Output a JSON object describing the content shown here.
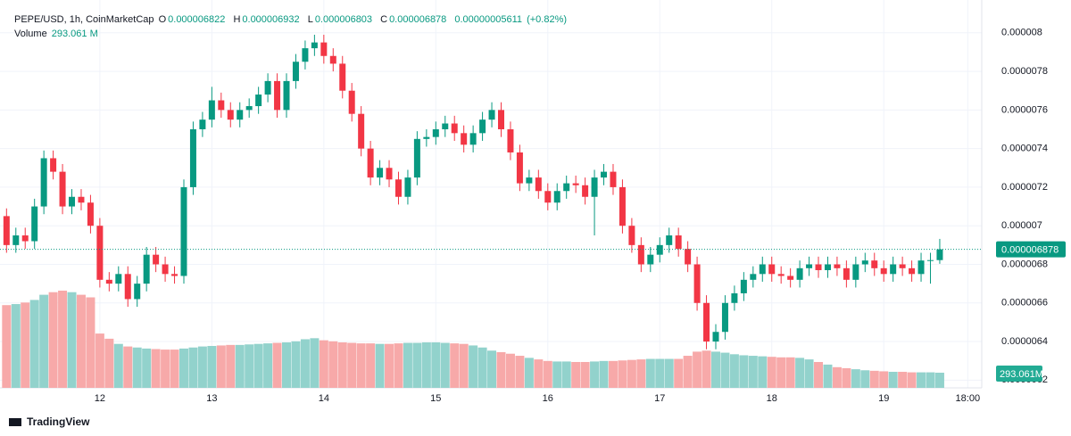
{
  "chart_data": {
    "type": "candlestick",
    "title": "PEPE/USD, 1h, CoinMarketCap",
    "ohlc_letters": [
      "O",
      "H",
      "L",
      "C"
    ],
    "change_label": "0.00000005611",
    "change_pct_label": "(+0.82%)",
    "volume_title": "Volume",
    "volume_header_label": "293.061 M",
    "volume_axis_label": "293.061M",
    "footer": "TradingView",
    "x": [
      0,
      2,
      4,
      6,
      8,
      10,
      12,
      14,
      16,
      18,
      20,
      22,
      24,
      26,
      28,
      30,
      32,
      34,
      36,
      38,
      40,
      42,
      44,
      46,
      48,
      50,
      52,
      54,
      56,
      58,
      60,
      62,
      64,
      66,
      68,
      70,
      72,
      74,
      76,
      78,
      80,
      82,
      84,
      86,
      88,
      90,
      92,
      94,
      96,
      98,
      100,
      102,
      104,
      106,
      108,
      110,
      112,
      114,
      116,
      118,
      120,
      122,
      124,
      126,
      128,
      130,
      132,
      134,
      136,
      138,
      140,
      142,
      144,
      146,
      148,
      150,
      152,
      154,
      156,
      158,
      160,
      162,
      164,
      166,
      168,
      170,
      172,
      174,
      176,
      178,
      180,
      182,
      184,
      186,
      188,
      190,
      192,
      194,
      196,
      198,
      200
    ],
    "candles": [
      [
        7.05e-06,
        7.09e-06,
        6.86e-06,
        6.9e-06
      ],
      [
        6.9e-06,
        6.99e-06,
        6.86e-06,
        6.95e-06
      ],
      [
        6.95e-06,
        6.99e-06,
        6.88e-06,
        6.92e-06
      ],
      [
        6.92e-06,
        7.14e-06,
        6.88e-06,
        7.1e-06
      ],
      [
        7.1e-06,
        7.39e-06,
        7.06e-06,
        7.35e-06
      ],
      [
        7.35e-06,
        7.39e-06,
        7.24e-06,
        7.28e-06
      ],
      [
        7.28e-06,
        7.32e-06,
        7.06e-06,
        7.1e-06
      ],
      [
        7.1e-06,
        7.19e-06,
        7.06e-06,
        7.15e-06
      ],
      [
        7.15e-06,
        7.19e-06,
        7.08e-06,
        7.12e-06
      ],
      [
        7.12e-06,
        7.16e-06,
        6.96e-06,
        7e-06
      ],
      [
        7e-06,
        7.04e-06,
        6.68e-06,
        6.72e-06
      ],
      [
        6.72e-06,
        6.76e-06,
        6.66e-06,
        6.7e-06
      ],
      [
        6.7e-06,
        6.79e-06,
        6.66e-06,
        6.75e-06
      ],
      [
        6.75e-06,
        6.79e-06,
        6.58e-06,
        6.62e-06
      ],
      [
        6.62e-06,
        6.74e-06,
        6.58e-06,
        6.7e-06
      ],
      [
        6.7e-06,
        6.89e-06,
        6.66e-06,
        6.85e-06
      ],
      [
        6.85e-06,
        6.89e-06,
        6.76e-06,
        6.8e-06
      ],
      [
        6.8e-06,
        6.84e-06,
        6.71e-06,
        6.75e-06
      ],
      [
        6.75e-06,
        6.79e-06,
        6.7e-06,
        6.74e-06
      ],
      [
        6.74e-06,
        7.24e-06,
        6.7e-06,
        7.2e-06
      ],
      [
        7.2e-06,
        7.54e-06,
        7.16e-06,
        7.5e-06
      ],
      [
        7.5e-06,
        7.59e-06,
        7.46e-06,
        7.55e-06
      ],
      [
        7.55e-06,
        7.72e-06,
        7.51e-06,
        7.65e-06
      ],
      [
        7.65e-06,
        7.69e-06,
        7.56e-06,
        7.6e-06
      ],
      [
        7.6e-06,
        7.64e-06,
        7.51e-06,
        7.55e-06
      ],
      [
        7.55e-06,
        7.64e-06,
        7.51e-06,
        7.6e-06
      ],
      [
        7.6e-06,
        7.66e-06,
        7.56e-06,
        7.62e-06
      ],
      [
        7.62e-06,
        7.72e-06,
        7.58e-06,
        7.68e-06
      ],
      [
        7.68e-06,
        7.79e-06,
        7.64e-06,
        7.75e-06
      ],
      [
        7.75e-06,
        7.79e-06,
        7.56e-06,
        7.6e-06
      ],
      [
        7.6e-06,
        7.79e-06,
        7.56e-06,
        7.75e-06
      ],
      [
        7.75e-06,
        7.89e-06,
        7.71e-06,
        7.85e-06
      ],
      [
        7.85e-06,
        7.96e-06,
        7.81e-06,
        7.92e-06
      ],
      [
        7.92e-06,
        7.99e-06,
        7.88e-06,
        7.95e-06
      ],
      [
        7.95e-06,
        7.99e-06,
        7.84e-06,
        7.88e-06
      ],
      [
        7.88e-06,
        7.92e-06,
        7.8e-06,
        7.84e-06
      ],
      [
        7.84e-06,
        7.88e-06,
        7.66e-06,
        7.7e-06
      ],
      [
        7.7e-06,
        7.74e-06,
        7.54e-06,
        7.58e-06
      ],
      [
        7.58e-06,
        7.62e-06,
        7.36e-06,
        7.4e-06
      ],
      [
        7.4e-06,
        7.44e-06,
        7.21e-06,
        7.25e-06
      ],
      [
        7.25e-06,
        7.34e-06,
        7.21e-06,
        7.3e-06
      ],
      [
        7.3e-06,
        7.34e-06,
        7.2e-06,
        7.24e-06
      ],
      [
        7.24e-06,
        7.28e-06,
        7.11e-06,
        7.15e-06
      ],
      [
        7.15e-06,
        7.29e-06,
        7.11e-06,
        7.25e-06
      ],
      [
        7.25e-06,
        7.49e-06,
        7.21e-06,
        7.45e-06
      ],
      [
        7.45e-06,
        7.5e-06,
        7.41e-06,
        7.46e-06
      ],
      [
        7.46e-06,
        7.54e-06,
        7.42e-06,
        7.5e-06
      ],
      [
        7.5e-06,
        7.57e-06,
        7.46e-06,
        7.53e-06
      ],
      [
        7.53e-06,
        7.57e-06,
        7.44e-06,
        7.48e-06
      ],
      [
        7.48e-06,
        7.52e-06,
        7.38e-06,
        7.42e-06
      ],
      [
        7.42e-06,
        7.52e-06,
        7.38e-06,
        7.48e-06
      ],
      [
        7.48e-06,
        7.59e-06,
        7.44e-06,
        7.55e-06
      ],
      [
        7.55e-06,
        7.64e-06,
        7.51e-06,
        7.6e-06
      ],
      [
        7.6e-06,
        7.64e-06,
        7.46e-06,
        7.5e-06
      ],
      [
        7.5e-06,
        7.54e-06,
        7.34e-06,
        7.38e-06
      ],
      [
        7.38e-06,
        7.42e-06,
        7.18e-06,
        7.22e-06
      ],
      [
        7.22e-06,
        7.29e-06,
        7.18e-06,
        7.25e-06
      ],
      [
        7.25e-06,
        7.29e-06,
        7.14e-06,
        7.18e-06
      ],
      [
        7.18e-06,
        7.22e-06,
        7.08e-06,
        7.12e-06
      ],
      [
        7.12e-06,
        7.22e-06,
        7.08e-06,
        7.18e-06
      ],
      [
        7.18e-06,
        7.26e-06,
        7.14e-06,
        7.22e-06
      ],
      [
        7.22e-06,
        7.26e-06,
        7.17e-06,
        7.21e-06
      ],
      [
        7.21e-06,
        7.25e-06,
        7.11e-06,
        7.15e-06
      ],
      [
        7.15e-06,
        7.29e-06,
        6.95e-06,
        7.25e-06
      ],
      [
        7.25e-06,
        7.32e-06,
        7.21e-06,
        7.28e-06
      ],
      [
        7.28e-06,
        7.32e-06,
        7.16e-06,
        7.2e-06
      ],
      [
        7.2e-06,
        7.24e-06,
        6.96e-06,
        7e-06
      ],
      [
        7e-06,
        7.04e-06,
        6.86e-06,
        6.9e-06
      ],
      [
        6.9e-06,
        6.94e-06,
        6.76e-06,
        6.8e-06
      ],
      [
        6.8e-06,
        6.89e-06,
        6.76e-06,
        6.85e-06
      ],
      [
        6.85e-06,
        6.94e-06,
        6.81e-06,
        6.9e-06
      ],
      [
        6.9e-06,
        6.99e-06,
        6.86e-06,
        6.95e-06
      ],
      [
        6.95e-06,
        6.99e-06,
        6.84e-06,
        6.88e-06
      ],
      [
        6.88e-06,
        6.92e-06,
        6.76e-06,
        6.8e-06
      ],
      [
        6.8e-06,
        6.84e-06,
        6.56e-06,
        6.6e-06
      ],
      [
        6.6e-06,
        6.64e-06,
        6.36e-06,
        6.4e-06
      ],
      [
        6.4e-06,
        6.49e-06,
        6.36e-06,
        6.45e-06
      ],
      [
        6.45e-06,
        6.64e-06,
        6.41e-06,
        6.6e-06
      ],
      [
        6.6e-06,
        6.69e-06,
        6.56e-06,
        6.65e-06
      ],
      [
        6.65e-06,
        6.76e-06,
        6.61e-06,
        6.72e-06
      ],
      [
        6.72e-06,
        6.79e-06,
        6.68e-06,
        6.75e-06
      ],
      [
        6.75e-06,
        6.84e-06,
        6.71e-06,
        6.8e-06
      ],
      [
        6.8e-06,
        6.84e-06,
        6.71e-06,
        6.75e-06
      ],
      [
        6.75e-06,
        6.79e-06,
        6.7e-06,
        6.74e-06
      ],
      [
        6.74e-06,
        6.78e-06,
        6.68e-06,
        6.72e-06
      ],
      [
        6.72e-06,
        6.82e-06,
        6.68e-06,
        6.78e-06
      ],
      [
        6.78e-06,
        6.84e-06,
        6.74e-06,
        6.8e-06
      ],
      [
        6.8e-06,
        6.84e-06,
        6.73e-06,
        6.77e-06
      ],
      [
        6.77e-06,
        6.84e-06,
        6.73e-06,
        6.8e-06
      ],
      [
        6.8e-06,
        6.84e-06,
        6.74e-06,
        6.78e-06
      ],
      [
        6.78e-06,
        6.82e-06,
        6.68e-06,
        6.72e-06
      ],
      [
        6.72e-06,
        6.84e-06,
        6.68e-06,
        6.8e-06
      ],
      [
        6.8e-06,
        6.86e-06,
        6.76e-06,
        6.82e-06
      ],
      [
        6.82e-06,
        6.86e-06,
        6.74e-06,
        6.78e-06
      ],
      [
        6.78e-06,
        6.82e-06,
        6.71e-06,
        6.75e-06
      ],
      [
        6.75e-06,
        6.84e-06,
        6.71e-06,
        6.8e-06
      ],
      [
        6.8e-06,
        6.84e-06,
        6.74e-06,
        6.78e-06
      ],
      [
        6.78e-06,
        6.82e-06,
        6.71e-06,
        6.75e-06
      ],
      [
        6.75e-06,
        6.86e-06,
        6.71e-06,
        6.82e-06
      ],
      [
        6.82e-06,
        6.86e-06,
        6.7e-06,
        6.822e-06
      ],
      [
        6.822e-06,
        6.932e-06,
        6.803e-06,
        6.878e-06
      ]
    ],
    "volumes": [
      1600,
      1620,
      1650,
      1700,
      1800,
      1850,
      1880,
      1850,
      1800,
      1750,
      1050,
      950,
      850,
      800,
      780,
      760,
      750,
      740,
      740,
      760,
      780,
      800,
      810,
      820,
      830,
      830,
      840,
      850,
      860,
      870,
      880,
      900,
      940,
      960,
      920,
      900,
      880,
      870,
      860,
      860,
      850,
      850,
      860,
      870,
      870,
      880,
      880,
      870,
      860,
      850,
      820,
      780,
      720,
      690,
      660,
      620,
      580,
      550,
      520,
      510,
      510,
      500,
      500,
      510,
      520,
      520,
      530,
      540,
      550,
      560,
      560,
      560,
      560,
      620,
      700,
      720,
      700,
      680,
      650,
      630,
      620,
      610,
      600,
      590,
      590,
      580,
      550,
      500,
      450,
      400,
      380,
      360,
      340,
      330,
      320,
      310,
      310,
      300,
      300,
      300,
      293.061
    ],
    "xlim": [
      -1.4,
      209
    ],
    "xticks": [
      {
        "value": 20,
        "label": "12"
      },
      {
        "value": 44,
        "label": "13"
      },
      {
        "value": 68,
        "label": "14"
      },
      {
        "value": 92,
        "label": "15"
      },
      {
        "value": 116,
        "label": "16"
      },
      {
        "value": 140,
        "label": "17"
      },
      {
        "value": 164,
        "label": "18"
      },
      {
        "value": 188,
        "label": "19"
      },
      {
        "value": 206,
        "label": "18:00"
      }
    ],
    "ylim": [
      6.16e-06,
      8.17e-06
    ],
    "yticks": [
      8e-06,
      7.8e-06,
      7.6e-06,
      7.4e-06,
      7.2e-06,
      7e-06,
      6.8e-06,
      6.6e-06,
      6.4e-06,
      6.2e-06
    ],
    "up_color": "#089981",
    "down_color": "#f23645",
    "up_volume_color": "#92d2cc",
    "down_volume_color": "#f7a9a9",
    "grid": true
  }
}
